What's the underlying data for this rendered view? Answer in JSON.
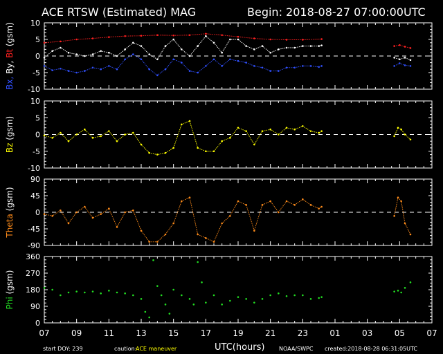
{
  "header": {
    "title": "ACE RTSW (Estimated) MAG",
    "begin": "Begin: 2018-08-27 07:00:00UTC"
  },
  "footer": {
    "start_doy": "start DOY:  239",
    "caution_label": "caution:",
    "caution_text": "ACE maneuver",
    "xlabel": "UTC(hours)",
    "source": "NOAA/SWPC",
    "created": "created:2018-08-28 06:31:05UTC"
  },
  "colors": {
    "background": "#000000",
    "frame": "#ffffff",
    "bt": "#ff2020",
    "by": "#ffffff",
    "bx": "#3050ff",
    "bz": "#ffff00",
    "theta": "#ff8c1a",
    "phi": "#22dd22",
    "caution": "#ffff00"
  },
  "chart_data": [
    {
      "type": "line",
      "ylabel_parts": [
        {
          "text": "Bx,",
          "color": "bx"
        },
        {
          "text": " By,",
          "color": "by"
        },
        {
          "text": " Bt",
          "color": "bt"
        },
        {
          "text": "  (gsm)",
          "color": "by"
        }
      ],
      "ylim": [
        -10,
        10
      ],
      "yticks": [
        "10",
        "5",
        "0",
        "-5",
        "-10"
      ],
      "ytick_values": [
        10,
        5,
        0,
        -5,
        -10
      ],
      "zero_line": 0,
      "x_range_hours": [
        0,
        24
      ],
      "series": [
        {
          "key": "Bt",
          "color": "bt",
          "x": [
            0,
            1,
            2,
            3,
            4,
            5,
            6,
            7,
            8,
            9,
            10,
            11,
            12,
            13,
            14,
            15,
            16,
            17.17,
            21.67,
            22,
            22.33,
            22.67,
            23.17,
            23.5
          ],
          "values": [
            4,
            4.4,
            5,
            5.3,
            5.7,
            6,
            6.1,
            6.3,
            6.2,
            6.3,
            6.7,
            6.3,
            5.8,
            5.3,
            5,
            4.9,
            4.9,
            5.1,
            3,
            3.3,
            2.8,
            2.4,
            null,
            null
          ]
        },
        {
          "key": "By",
          "color": "by",
          "x": [
            0,
            0.5,
            1,
            1.5,
            2,
            2.5,
            3,
            3.5,
            4,
            4.5,
            5,
            5.5,
            6,
            6.5,
            7,
            7.5,
            8,
            8.5,
            9,
            9.5,
            10,
            10.5,
            11,
            11.5,
            12,
            12.5,
            13,
            13.5,
            14,
            14.5,
            15,
            15.5,
            16,
            16.5,
            17,
            17.17,
            21.67,
            22,
            22.33,
            22.67
          ],
          "values": [
            -0.5,
            1.5,
            2.5,
            1,
            0.5,
            0,
            0.5,
            1.5,
            1,
            0,
            2,
            4,
            3,
            0.5,
            -1,
            3,
            5,
            2,
            0,
            3,
            6,
            4,
            1,
            5,
            5,
            3,
            2,
            3,
            1,
            2,
            2.5,
            2.5,
            3,
            3,
            3,
            3.2,
            -0.5,
            -1,
            -0.5,
            -1.2
          ]
        },
        {
          "key": "Bx",
          "color": "bx",
          "x": [
            0,
            0.5,
            1,
            1.5,
            2,
            2.5,
            3,
            3.5,
            4,
            4.5,
            5,
            5.5,
            6,
            6.5,
            7,
            7.5,
            8,
            8.5,
            9,
            9.5,
            10,
            10.5,
            11,
            11.5,
            12,
            12.5,
            13,
            13.5,
            14,
            14.5,
            15,
            15.5,
            16,
            16.5,
            17,
            17.17,
            21.67,
            22,
            22.33,
            22.67
          ],
          "values": [
            -3,
            -4.3,
            -3.8,
            -4.5,
            -5,
            -4.5,
            -3.5,
            -4,
            -3,
            -4,
            -1,
            0.5,
            -1,
            -4,
            -5.8,
            -4,
            -1,
            -2,
            -4.5,
            -5,
            -3,
            -1,
            -3,
            -1,
            -1.5,
            -2,
            -3,
            -3.5,
            -4.5,
            -4.5,
            -3.5,
            -3.5,
            -3,
            -3,
            -3.3,
            -3,
            -3,
            -2.2,
            -2.8,
            -3
          ]
        }
      ]
    },
    {
      "type": "line",
      "ylabel_parts": [
        {
          "text": "Bz",
          "color": "bz"
        },
        {
          "text": "  (gsm)",
          "color": "by"
        }
      ],
      "ylim": [
        -10,
        10
      ],
      "yticks": [
        "10",
        "5",
        "0",
        "-5",
        "-10"
      ],
      "ytick_values": [
        10,
        5,
        0,
        -5,
        -10
      ],
      "zero_line": 0,
      "x_range_hours": [
        0,
        24
      ],
      "series": [
        {
          "key": "Bz",
          "color": "bz",
          "x": [
            0,
            0.5,
            1,
            1.5,
            2,
            2.5,
            3,
            3.5,
            4,
            4.5,
            5,
            5.5,
            6,
            6.5,
            7,
            7.5,
            8,
            8.5,
            9,
            9.5,
            10,
            10.5,
            11,
            11.5,
            12,
            12.5,
            13,
            13.5,
            14,
            14.5,
            15,
            15.5,
            16,
            16.5,
            17,
            17.17,
            21.67,
            21.9,
            22.1,
            22.33,
            22.67
          ],
          "values": [
            -0.3,
            -1,
            0.5,
            -2,
            0,
            1.5,
            -1,
            -0.5,
            1,
            -2,
            0,
            0.5,
            -3,
            -5.5,
            -6,
            -5.5,
            -4,
            3,
            4,
            -4,
            -5,
            -5,
            -2,
            -1,
            2,
            1,
            -3,
            1,
            1.5,
            0,
            2,
            1.5,
            2.5,
            1,
            0.5,
            1,
            -0.5,
            2,
            1.5,
            0,
            -1.5
          ]
        }
      ]
    },
    {
      "type": "line",
      "ylabel_parts": [
        {
          "text": "Theta",
          "color": "theta"
        },
        {
          "text": "  (gsm)",
          "color": "by"
        }
      ],
      "ylim": [
        -90,
        90
      ],
      "yticks": [
        "90",
        "45",
        "0",
        "-45",
        "-90"
      ],
      "ytick_values": [
        90,
        45,
        0,
        -45,
        -90
      ],
      "zero_line": 0,
      "x_range_hours": [
        0,
        24
      ],
      "series": [
        {
          "key": "Theta",
          "color": "theta",
          "x": [
            0,
            0.5,
            1,
            1.5,
            2,
            2.5,
            3,
            3.5,
            4,
            4.5,
            5,
            5.5,
            6,
            6.5,
            7,
            7.5,
            8,
            8.5,
            9,
            9.5,
            10,
            10.5,
            11,
            11.5,
            12,
            12.5,
            13,
            13.5,
            14,
            14.5,
            15,
            15.5,
            16,
            16.5,
            17,
            17.17,
            21.67,
            21.9,
            22.1,
            22.33,
            22.67
          ],
          "values": [
            -5,
            -10,
            5,
            -30,
            0,
            15,
            -15,
            -5,
            10,
            -40,
            0,
            5,
            -50,
            -80,
            -80,
            -60,
            -30,
            30,
            40,
            -60,
            -70,
            -80,
            -30,
            -10,
            30,
            20,
            -50,
            20,
            30,
            0,
            30,
            20,
            35,
            20,
            10,
            15,
            -10,
            40,
            30,
            -30,
            -60
          ]
        }
      ]
    },
    {
      "type": "scatter",
      "ylabel_parts": [
        {
          "text": "Phi",
          "color": "phi"
        },
        {
          "text": "  (gsm)",
          "color": "by"
        }
      ],
      "ylim": [
        0,
        360
      ],
      "yticks": [
        "360",
        "270",
        "180",
        "90",
        "0"
      ],
      "ytick_values": [
        360,
        270,
        180,
        90,
        0
      ],
      "zero_line": null,
      "x_range_hours": [
        0,
        24
      ],
      "series": [
        {
          "key": "Phi",
          "color": "phi",
          "x": [
            0,
            0.5,
            1,
            1.5,
            2,
            2.5,
            3,
            3.5,
            4,
            4.5,
            5,
            5.5,
            6,
            6.25,
            6.5,
            6.75,
            7,
            7.25,
            7.5,
            7.75,
            8,
            8.5,
            9,
            9.25,
            9.5,
            9.75,
            10,
            10.5,
            11,
            11.5,
            12,
            12.5,
            13,
            13.5,
            14,
            14.5,
            15,
            15.5,
            16,
            16.5,
            17,
            17.17,
            21.67,
            21.9,
            22.1,
            22.33,
            22.67
          ],
          "values": [
            190,
            180,
            150,
            165,
            170,
            165,
            170,
            160,
            175,
            165,
            160,
            150,
            130,
            60,
            30,
            340,
            200,
            150,
            100,
            50,
            180,
            150,
            130,
            100,
            330,
            220,
            110,
            150,
            100,
            120,
            140,
            130,
            110,
            130,
            150,
            160,
            145,
            150,
            150,
            130,
            135,
            140,
            170,
            175,
            165,
            190,
            220
          ]
        }
      ]
    }
  ],
  "x_axis": {
    "tick_labels": [
      "07",
      "09",
      "11",
      "13",
      "15",
      "17",
      "19",
      "21",
      "23",
      "01",
      "03",
      "05",
      "07"
    ],
    "tick_hours": [
      0,
      2,
      4,
      6,
      8,
      10,
      12,
      14,
      16,
      18,
      20,
      22,
      24
    ]
  }
}
